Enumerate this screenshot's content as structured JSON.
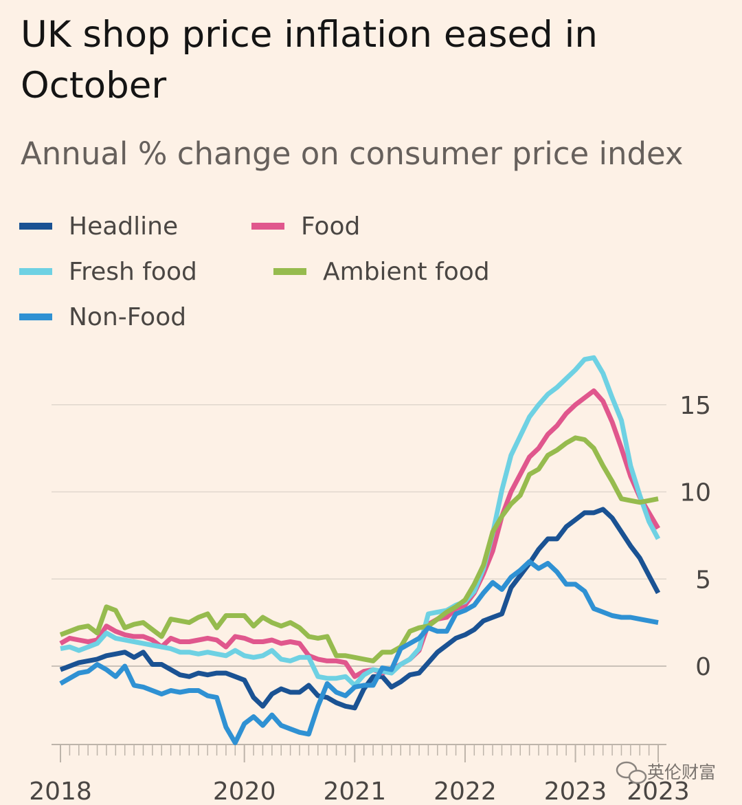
{
  "chart_data": {
    "type": "line",
    "title": "UK shop price inflation eased in October",
    "subtitle": "Annual % change on consumer price index",
    "xlabel": "",
    "ylabel": "",
    "ylim": [
      -4.5,
      17
    ],
    "yticks": [
      0,
      5,
      10,
      15
    ],
    "xticks": [
      {
        "label": "2018",
        "x": 0
      },
      {
        "label": "2020",
        "x": 20
      },
      {
        "label": "2021",
        "x": 32
      },
      {
        "label": "2022",
        "x": 44
      },
      {
        "label": "2023",
        "x": 56
      },
      {
        "label": "2023",
        "x": 65
      }
    ],
    "x_count": 66,
    "legend_position": "top-left",
    "grid": true,
    "series": [
      {
        "name": "Headline",
        "color": "#1a5293",
        "values": [
          -0.2,
          0,
          0.2,
          0.3,
          0.4,
          0.6,
          0.7,
          0.8,
          0.5,
          0.8,
          0.1,
          0.1,
          -0.2,
          -0.5,
          -0.6,
          -0.4,
          -0.5,
          -0.4,
          -0.4,
          -0.6,
          -0.8,
          -1.8,
          -2.3,
          -1.6,
          -1.3,
          -1.5,
          -1.5,
          -1.1,
          -1.7,
          -1.8,
          -2.1,
          -2.3,
          -2.4,
          -1.3,
          -0.6,
          -0.6,
          -1.2,
          -0.9,
          -0.5,
          -0.4,
          0.2,
          0.8,
          1.2,
          1.6,
          1.8,
          2.1,
          2.6,
          2.8,
          3,
          4.5,
          5.2,
          5.9,
          6.7,
          7.3,
          7.3,
          8,
          8.4,
          8.8,
          8.8,
          9,
          8.5,
          7.7,
          6.9,
          6.2,
          5.2,
          4.2
        ]
      },
      {
        "name": "Food",
        "color": "#e0578d",
        "values": [
          1.3,
          1.6,
          1.5,
          1.4,
          1.5,
          2.3,
          2,
          1.8,
          1.7,
          1.7,
          1.5,
          1.1,
          1.6,
          1.4,
          1.4,
          1.5,
          1.6,
          1.5,
          1.1,
          1.7,
          1.6,
          1.4,
          1.4,
          1.5,
          1.3,
          1.4,
          1.3,
          0.6,
          0.4,
          0.3,
          0.3,
          0.2,
          -0.6,
          -0.3,
          -0.2,
          -0.4,
          -0.2,
          0.1,
          0.4,
          0.9,
          2.4,
          2.7,
          2.8,
          3.3,
          3.5,
          4.2,
          5.3,
          6.6,
          8.6,
          10,
          11,
          12,
          12.5,
          13.3,
          13.8,
          14.5,
          15,
          15.4,
          15.8,
          15.2,
          14,
          12.5,
          10.9,
          9.7,
          8.8,
          7.9
        ]
      },
      {
        "name": "Fresh food",
        "color": "#6ed1e3",
        "values": [
          1,
          1.1,
          0.9,
          1.1,
          1.3,
          1.9,
          1.6,
          1.5,
          1.4,
          1.3,
          1.2,
          1.1,
          1,
          0.8,
          0.8,
          0.7,
          0.8,
          0.7,
          0.6,
          0.9,
          0.6,
          0.5,
          0.6,
          0.9,
          0.4,
          0.3,
          0.5,
          0.5,
          -0.6,
          -0.7,
          -0.7,
          -0.6,
          -1.1,
          -0.5,
          -0.2,
          -0.3,
          -0.4,
          0.1,
          0.4,
          1,
          3,
          3.1,
          3.2,
          3.5,
          3.7,
          4.3,
          5.6,
          7.6,
          10.1,
          12.1,
          13.2,
          14.3,
          15,
          15.6,
          16,
          16.5,
          17,
          17.6,
          17.7,
          16.8,
          15.4,
          14.1,
          11.5,
          9.8,
          8.3,
          7.3
        ]
      },
      {
        "name": "Ambient food",
        "color": "#96bb4e",
        "values": [
          1.8,
          2,
          2.2,
          2.3,
          1.9,
          3.4,
          3.2,
          2.2,
          2.4,
          2.5,
          2.1,
          1.7,
          2.7,
          2.6,
          2.5,
          2.8,
          3,
          2.2,
          2.9,
          2.9,
          2.9,
          2.3,
          2.8,
          2.5,
          2.3,
          2.5,
          2.2,
          1.7,
          1.6,
          1.7,
          0.6,
          0.6,
          0.5,
          0.4,
          0.3,
          0.8,
          0.8,
          1.1,
          2,
          2.2,
          2.3,
          2.7,
          3.1,
          3.4,
          3.8,
          4.7,
          5.8,
          7.7,
          8.6,
          9.3,
          9.8,
          11,
          11.3,
          12.1,
          12.4,
          12.8,
          13.1,
          13,
          12.5,
          11.5,
          10.6,
          9.6,
          9.5,
          9.4,
          9.5,
          9.6
        ]
      },
      {
        "name": "Non-Food",
        "color": "#2f91d3",
        "values": [
          -1,
          -0.7,
          -0.4,
          -0.3,
          0.1,
          -0.2,
          -0.6,
          0,
          -1.1,
          -1.2,
          -1.4,
          -1.6,
          -1.4,
          -1.5,
          -1.4,
          -1.4,
          -1.7,
          -1.8,
          -3.5,
          -4.4,
          -3.3,
          -2.9,
          -3.4,
          -2.8,
          -3.4,
          -3.6,
          -3.8,
          -3.9,
          -2.3,
          -1,
          -1.5,
          -1.7,
          -1.2,
          -1.1,
          -1.1,
          -0.1,
          -0.2,
          1,
          1.3,
          1.6,
          2.2,
          2,
          2,
          3,
          3.2,
          3.5,
          4.2,
          4.8,
          4.4,
          5.1,
          5.5,
          6,
          5.6,
          5.9,
          5.4,
          4.7,
          4.7,
          4.3,
          3.3,
          3.1,
          2.9,
          2.8,
          2.8,
          2.7,
          2.6,
          2.5
        ]
      }
    ]
  },
  "watermark": "英伦财富"
}
